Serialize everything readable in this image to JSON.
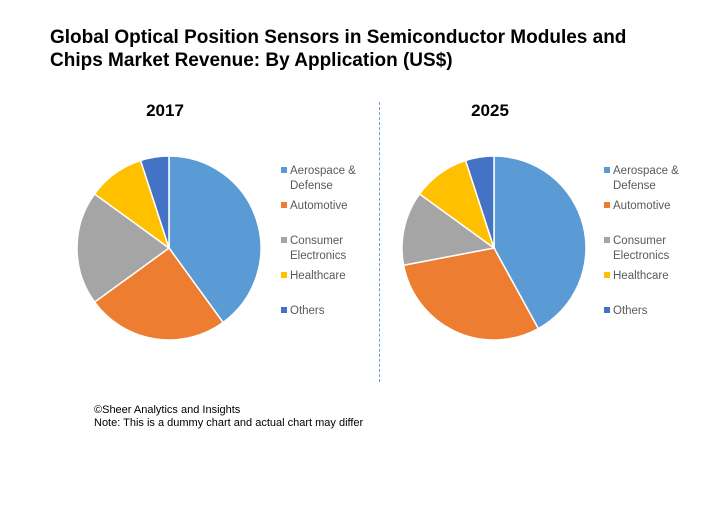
{
  "title_lines": [
    "Global Optical Position Sensors in Semiconductor Modules and",
    "Chips Market Revenue: By Application (US$)"
  ],
  "footer": {
    "copyright": "©Sheer Analytics and Insights",
    "note": "Note: This is a dummy chart and actual chart may differ"
  },
  "chart_data": [
    {
      "type": "pie",
      "title": "2017",
      "categories": [
        "Aerospace & Defense",
        "Automotive",
        "Consumer Electronics",
        "Healthcare",
        "Others"
      ],
      "legend_labels": [
        [
          "Aerospace &",
          "Defense"
        ],
        [
          "Automotive"
        ],
        [
          "Consumer",
          "Electronics"
        ],
        [
          "Healthcare"
        ],
        [
          "Others"
        ]
      ],
      "values": [
        40,
        25,
        20,
        10,
        5
      ],
      "colors": [
        "#5b9bd5",
        "#ed7d31",
        "#a5a5a5",
        "#ffc000",
        "#4472c4"
      ],
      "legend_position": "right",
      "start_angle_deg": 0,
      "direction": "clockwise"
    },
    {
      "type": "pie",
      "title": "2025",
      "categories": [
        "Aerospace & Defense",
        "Automotive",
        "Consumer Electronics",
        "Healthcare",
        "Others"
      ],
      "legend_labels": [
        [
          "Aerospace &",
          "Defense"
        ],
        [
          "Automotive"
        ],
        [
          "Consumer",
          "Electronics"
        ],
        [
          "Healthcare"
        ],
        [
          "Others"
        ]
      ],
      "values": [
        42,
        30,
        13,
        10,
        5
      ],
      "colors": [
        "#5b9bd5",
        "#ed7d31",
        "#a5a5a5",
        "#ffc000",
        "#4472c4"
      ],
      "legend_position": "right",
      "start_angle_deg": 0,
      "direction": "clockwise"
    }
  ]
}
